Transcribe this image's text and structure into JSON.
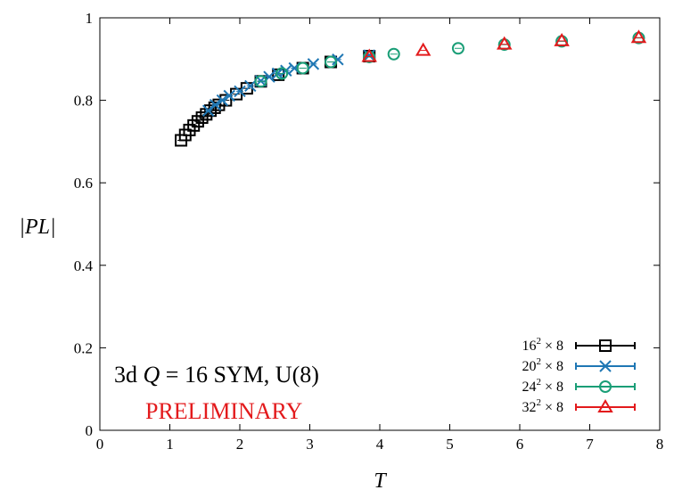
{
  "chart_data": {
    "type": "scatter",
    "xlabel": "T",
    "ylabel": "|PL|",
    "xlim": [
      0,
      8
    ],
    "ylim": [
      0,
      1
    ],
    "xticks": [
      "0",
      "1",
      "2",
      "3",
      "4",
      "5",
      "6",
      "7",
      "8"
    ],
    "yticks": [
      "0",
      "0.2",
      "0.4",
      "0.6",
      "0.8",
      "1"
    ],
    "grid": false,
    "legend_position": "bottom-right",
    "annotation": "3d Q = 16 SYM, U(8)",
    "annotation_parts": {
      "pre": "3d ",
      "q": "Q",
      "post": " = 16 SYM, U(8)"
    },
    "watermark": "PRELIMINARY",
    "watermark_color": "#e31a1c",
    "series": [
      {
        "name": "16² × 8",
        "name_parts": {
          "base": "16",
          "sup": "2",
          "rest": " × 8"
        },
        "marker": "square",
        "color": "#000000",
        "x": [
          1.16,
          1.22,
          1.28,
          1.34,
          1.4,
          1.46,
          1.52,
          1.58,
          1.64,
          1.7,
          1.8,
          1.95,
          2.1,
          2.3,
          2.55,
          2.9,
          3.3,
          3.85
        ],
        "y": [
          0.703,
          0.716,
          0.728,
          0.739,
          0.749,
          0.758,
          0.766,
          0.775,
          0.782,
          0.789,
          0.8,
          0.815,
          0.829,
          0.846,
          0.862,
          0.878,
          0.893,
          0.907
        ]
      },
      {
        "name": "20² × 8",
        "name_parts": {
          "base": "20",
          "sup": "2",
          "rest": " × 8"
        },
        "marker": "x",
        "color": "#1f77b4",
        "x": [
          1.55,
          1.65,
          1.75,
          1.85,
          2.0,
          2.15,
          2.3,
          2.42,
          2.54,
          2.66,
          2.78,
          3.05,
          3.4,
          3.85
        ],
        "y": [
          0.775,
          0.789,
          0.8,
          0.811,
          0.822,
          0.835,
          0.847,
          0.857,
          0.865,
          0.872,
          0.878,
          0.888,
          0.899,
          0.909
        ]
      },
      {
        "name": "24² × 8",
        "name_parts": {
          "base": "24",
          "sup": "2",
          "rest": " × 8"
        },
        "marker": "circle",
        "color": "#1a9e77",
        "x": [
          2.3,
          2.6,
          2.9,
          3.3,
          3.85,
          4.2,
          5.12,
          5.78,
          6.6,
          7.7
        ],
        "y": [
          0.846,
          0.865,
          0.878,
          0.893,
          0.905,
          0.912,
          0.926,
          0.935,
          0.943,
          0.951
        ]
      },
      {
        "name": "32² × 8",
        "name_parts": {
          "base": "32",
          "sup": "2",
          "rest": " × 8"
        },
        "marker": "triangle",
        "color": "#e31a1c",
        "x": [
          3.85,
          4.62,
          5.78,
          6.6,
          7.7
        ],
        "y": [
          0.906,
          0.921,
          0.936,
          0.944,
          0.952
        ]
      }
    ]
  }
}
